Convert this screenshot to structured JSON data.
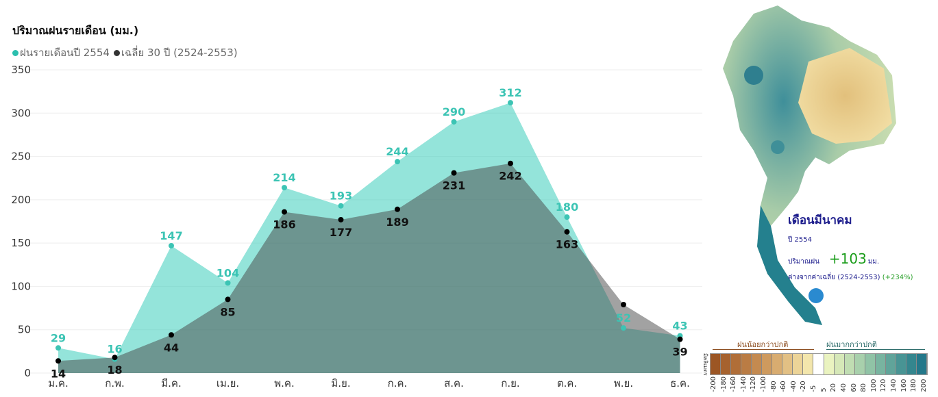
{
  "chart_data": {
    "type": "area",
    "title": "ปริมาณฝนรายเดือน (มม.)",
    "categories": [
      "ม.ค.",
      "ก.พ.",
      "มี.ค.",
      "เม.ย.",
      "พ.ค.",
      "มิ.ย.",
      "ก.ค.",
      "ส.ค.",
      "ก.ย.",
      "ต.ค.",
      "พ.ย.",
      "ธ.ค."
    ],
    "series": [
      {
        "name": "ฝนรายเดือนปี 2554",
        "color": "#2bbfae",
        "values": [
          29,
          16,
          147,
          104,
          214,
          193,
          244,
          290,
          312,
          180,
          52,
          43
        ],
        "show_labels": [
          true,
          true,
          true,
          true,
          true,
          true,
          true,
          true,
          true,
          true,
          true,
          true
        ]
      },
      {
        "name": "เฉลี่ย 30 ปี (2524-2553)",
        "color": "#111111",
        "values": [
          14,
          18,
          44,
          85,
          186,
          177,
          189,
          231,
          242,
          163,
          79,
          39
        ],
        "show_labels": [
          true,
          true,
          true,
          true,
          true,
          true,
          true,
          true,
          true,
          true,
          false,
          true
        ]
      }
    ],
    "ylim": [
      0,
      350
    ],
    "yticks": [
      0,
      50,
      100,
      150,
      200,
      250,
      300,
      350
    ],
    "grid": true,
    "legend": "top-left"
  },
  "map_panel": {
    "heading": "เดือนมีนาคม",
    "year": "ปี 2554",
    "rain_label": "ปริมาณฝน",
    "rain_value": "+103",
    "rain_unit": "มม.",
    "diff_label": "ต่างจากค่าเฉลี่ย (2524-2553)",
    "diff_pct": "(+234%)",
    "less_label": "ฝนน้อยกว่าปกติ",
    "more_label": "ฝนมากกว่าปกติ",
    "unit_label": "มิลลิเมตร",
    "scale_ticks": [
      "-200",
      "-180",
      "-160",
      "-140",
      "-120",
      "-100",
      "-80",
      "-60",
      "-40",
      "-20",
      "-5",
      "5",
      "20",
      "40",
      "60",
      "80",
      "100",
      "120",
      "140",
      "160",
      "180",
      "200"
    ],
    "scale_colors": [
      "#9c5624",
      "#a6622e",
      "#b06e38",
      "#ba7c44",
      "#c48a50",
      "#ce9a5e",
      "#d8ac70",
      "#e2c084",
      "#ecd498",
      "#f3e6ac",
      "#ffffff",
      "#eaf3c0",
      "#d6e8b8",
      "#c0ddb2",
      "#a8d0ac",
      "#90c3a6",
      "#78b4a0",
      "#60a49a",
      "#489494",
      "#34868e",
      "#24788a"
    ]
  }
}
